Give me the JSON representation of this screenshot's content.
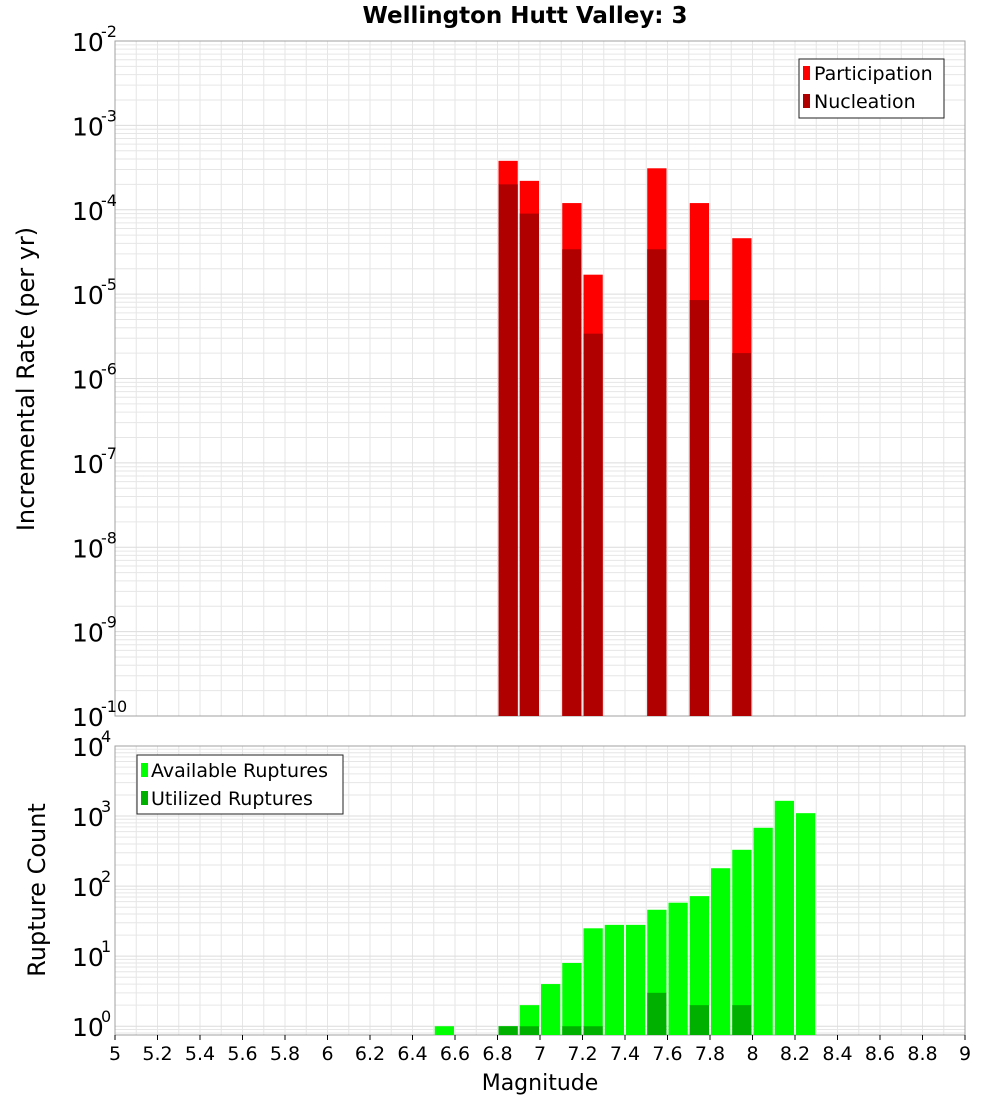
{
  "title": "Wellington Hutt Valley: 3",
  "colors": {
    "participation": "#ff0000",
    "nucleation": "#b00000",
    "available": "#00ff00",
    "utilized": "#00b000",
    "grid": "#e6e6e6",
    "axis": "#a0a0a0"
  },
  "chart_data": [
    {
      "type": "bar",
      "title": "Wellington Hutt Valley: 3",
      "ylabel": "Incremental Rate (per yr)",
      "xlabel": "",
      "xlim": [
        5,
        9
      ],
      "ylim": [
        1e-10,
        0.01
      ],
      "yscale": "log",
      "y_tick_base": "10",
      "y_tick_exponents": [
        "-10",
        "-9",
        "-8",
        "-7",
        "-6",
        "-5",
        "-4",
        "-3",
        "-2"
      ],
      "bin_width": 0.1,
      "legend_position": "top-right",
      "series": [
        {
          "name": "Participation",
          "x": [
            6.85,
            6.95,
            7.15,
            7.25,
            7.55,
            7.75,
            7.95
          ],
          "values": [
            0.00038,
            0.00022,
            0.00012,
            1.7e-05,
            0.00031,
            0.00012,
            4.6e-05
          ]
        },
        {
          "name": "Nucleation",
          "x": [
            6.85,
            6.95,
            7.15,
            7.25,
            7.55,
            7.75,
            7.95
          ],
          "values": [
            0.0002,
            9e-05,
            3.4e-05,
            3.4e-06,
            3.4e-05,
            8.5e-06,
            2e-06
          ]
        }
      ]
    },
    {
      "type": "bar",
      "title": "",
      "ylabel": "Rupture Count",
      "xlabel": "Magnitude",
      "xlim": [
        5,
        9
      ],
      "ylim": [
        0.75,
        10000.0
      ],
      "yscale": "log",
      "y_tick_base": "10",
      "y_tick_exponents": [
        "0",
        "1",
        "2",
        "3",
        "4"
      ],
      "x_ticks": [
        "5",
        "5.2",
        "5.4",
        "5.6",
        "5.8",
        "6",
        "6.2",
        "6.4",
        "6.6",
        "6.8",
        "7",
        "7.2",
        "7.4",
        "7.6",
        "7.8",
        "8",
        "8.2",
        "8.4",
        "8.6",
        "8.8",
        "9"
      ],
      "bin_width": 0.1,
      "legend_position": "top-left",
      "series": [
        {
          "name": "Available Ruptures",
          "x": [
            6.55,
            6.85,
            6.95,
            7.05,
            7.15,
            7.25,
            7.35,
            7.45,
            7.55,
            7.65,
            7.75,
            7.85,
            7.95,
            8.05,
            8.15,
            8.25
          ],
          "values": [
            1,
            1,
            2,
            4,
            8,
            25,
            28,
            28,
            46,
            58,
            72,
            180,
            330,
            680,
            1650,
            1100
          ]
        },
        {
          "name": "Utilized Ruptures",
          "x": [
            6.85,
            6.95,
            7.15,
            7.25,
            7.55,
            7.75,
            7.95
          ],
          "values": [
            1,
            1,
            1,
            1,
            3,
            2,
            2
          ]
        }
      ]
    }
  ]
}
